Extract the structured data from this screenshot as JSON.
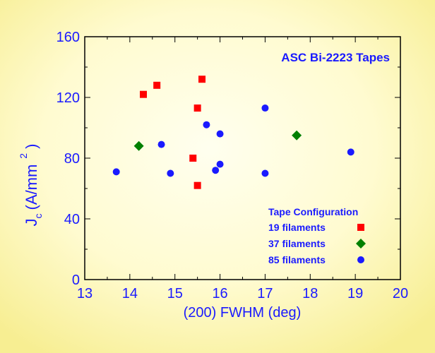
{
  "chart_data": {
    "type": "scatter",
    "title": "ASC Bi-2223 Tapes",
    "xlabel": "(200) FWHM (deg)",
    "ylabel": {
      "symbol": "J",
      "subscript": "c",
      "unit_prefix": "(A/mm",
      "superscript": "2",
      "unit_suffix": ")"
    },
    "xlim": [
      13,
      20
    ],
    "ylim": [
      0,
      160
    ],
    "x_ticks": [
      "13",
      "14",
      "15",
      "16",
      "17",
      "18",
      "19",
      "20"
    ],
    "y_ticks": [
      "0",
      "40",
      "80",
      "120",
      "160"
    ],
    "legend": {
      "title": "Tape Configuration",
      "placement": "bottom-right"
    },
    "series": [
      {
        "name": "19 filaments",
        "marker": "square",
        "color": "#ff0000",
        "points": [
          {
            "x": 14.3,
            "y": 122
          },
          {
            "x": 14.6,
            "y": 128
          },
          {
            "x": 15.6,
            "y": 132
          },
          {
            "x": 15.5,
            "y": 113
          },
          {
            "x": 15.4,
            "y": 80
          },
          {
            "x": 15.5,
            "y": 62
          }
        ]
      },
      {
        "name": "37 filaments",
        "marker": "diamond",
        "color": "#008000",
        "points": [
          {
            "x": 14.2,
            "y": 88
          },
          {
            "x": 17.7,
            "y": 95
          }
        ]
      },
      {
        "name": "85 filaments",
        "marker": "circle",
        "color": "#1a1aff",
        "points": [
          {
            "x": 13.7,
            "y": 71
          },
          {
            "x": 14.7,
            "y": 89
          },
          {
            "x": 14.9,
            "y": 70
          },
          {
            "x": 15.7,
            "y": 102
          },
          {
            "x": 15.9,
            "y": 72
          },
          {
            "x": 16.0,
            "y": 96
          },
          {
            "x": 16.0,
            "y": 76
          },
          {
            "x": 17.0,
            "y": 113
          },
          {
            "x": 17.0,
            "y": 70
          },
          {
            "x": 18.9,
            "y": 84
          }
        ]
      }
    ]
  },
  "colors": {
    "axis": "#1a1aff",
    "background_light": "#ffffef",
    "background_dark": "#f9f095"
  }
}
